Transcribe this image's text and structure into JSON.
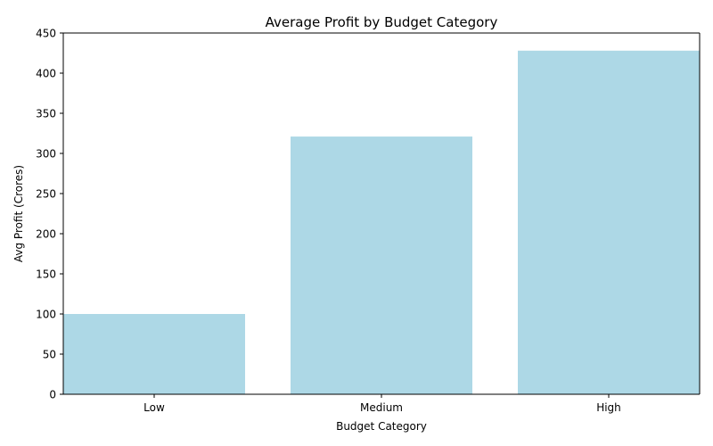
{
  "chart_data": {
    "type": "bar",
    "title": "Average Profit by Budget Category",
    "xlabel": "Budget Category",
    "ylabel": "Avg Profit (Crores)",
    "categories": [
      "Low",
      "Medium",
      "High"
    ],
    "values": [
      100,
      321,
      428
    ],
    "ylim": [
      0,
      450
    ],
    "yticks": [
      0,
      50,
      100,
      150,
      200,
      250,
      300,
      350,
      400,
      450
    ],
    "bar_color": "#add8e6",
    "grid": false,
    "legend": "none"
  }
}
